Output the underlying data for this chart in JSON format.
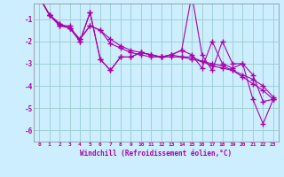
{
  "xlabel": "Windchill (Refroidissement éolien,°C)",
  "background_color": "#cceeff",
  "line_color": "#aa00aa",
  "grid_color": "#99cccc",
  "xlim": [
    -0.5,
    23.5
  ],
  "ylim": [
    -6.5,
    -0.3
  ],
  "yticks": [
    -1,
    -2,
    -3,
    -4,
    -5,
    -6
  ],
  "xticks": [
    0,
    1,
    2,
    3,
    4,
    5,
    6,
    7,
    8,
    9,
    10,
    11,
    12,
    13,
    14,
    15,
    16,
    17,
    18,
    19,
    20,
    21,
    22,
    23
  ],
  "x": [
    0,
    1,
    2,
    3,
    4,
    5,
    6,
    7,
    8,
    9,
    10,
    11,
    12,
    13,
    14,
    15,
    16,
    17,
    18,
    19,
    20,
    21,
    22,
    23
  ],
  "y_spike": [
    0.0,
    -0.8,
    -1.3,
    -1.3,
    -2.0,
    -0.7,
    -2.8,
    -3.3,
    -2.7,
    -2.7,
    -2.5,
    -2.6,
    -2.7,
    -2.6,
    -2.4,
    0.1,
    -2.6,
    -3.3,
    -2.0,
    -3.0,
    -3.0,
    -3.5,
    -4.7,
    -4.6
  ],
  "y_flat1": [
    0.0,
    -0.8,
    -1.2,
    -1.4,
    -1.9,
    -1.3,
    -1.5,
    -1.9,
    -2.2,
    -2.4,
    -2.5,
    -2.6,
    -2.7,
    -2.6,
    -2.7,
    -2.7,
    -2.9,
    -3.0,
    -3.1,
    -3.3,
    -3.5,
    -3.7,
    -4.0,
    -4.5
  ],
  "y_flat2": [
    0.0,
    -0.8,
    -1.2,
    -1.4,
    -1.9,
    -1.3,
    -1.5,
    -2.1,
    -2.3,
    -2.5,
    -2.6,
    -2.7,
    -2.7,
    -2.7,
    -2.7,
    -2.8,
    -2.9,
    -3.1,
    -3.2,
    -3.3,
    -3.6,
    -3.9,
    -4.2,
    -4.6
  ],
  "y_jagged": [
    0.0,
    -0.8,
    -1.3,
    -1.4,
    -2.0,
    -0.7,
    -2.8,
    -3.3,
    -2.7,
    -2.7,
    -2.5,
    -2.6,
    -2.7,
    -2.6,
    -2.4,
    -2.6,
    -3.2,
    -2.0,
    -3.0,
    -3.2,
    -3.0,
    -4.6,
    -5.7,
    -4.6
  ]
}
